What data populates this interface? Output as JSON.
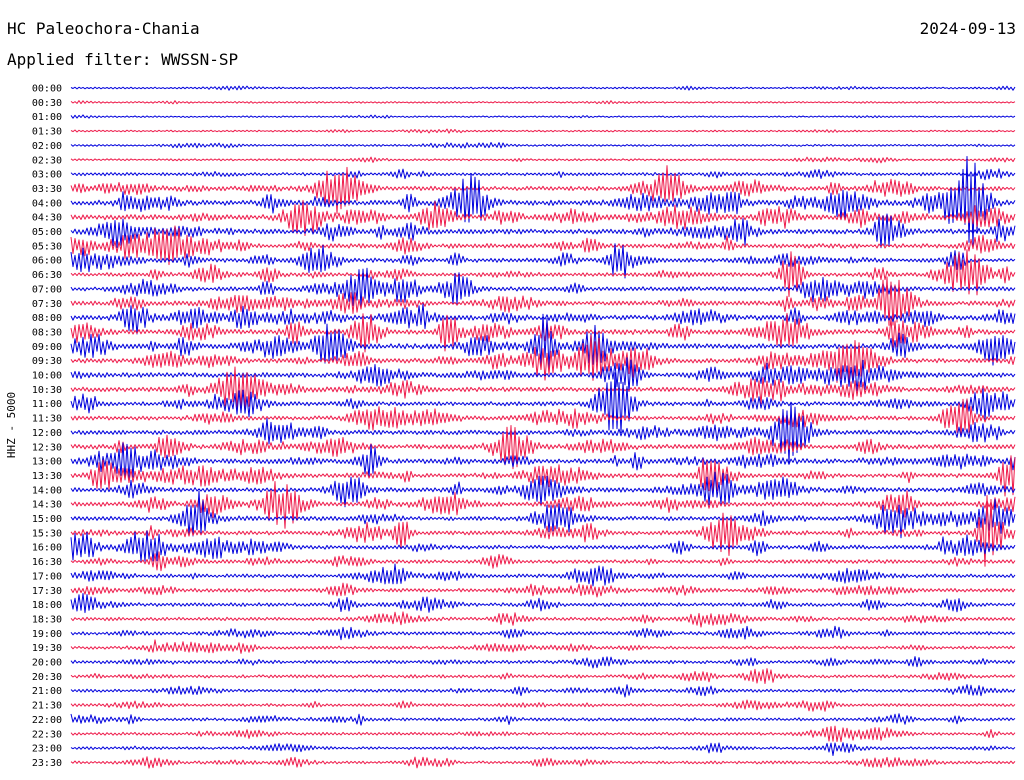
{
  "header": {
    "station": "HC Paleochora-Chania",
    "date": "2024-09-13",
    "filter": "Applied filter: WWSSN-SP"
  },
  "chart_data": {
    "type": "line",
    "title": "HC Paleochora-Chania",
    "subtitle": "Applied filter: WWSSN-SP",
    "date": "2024-09-13",
    "ylabel": "HHZ - 5000",
    "xlabel": "",
    "grid": false,
    "colors": [
      "#0000dd",
      "#ee1a4a"
    ],
    "rows": [
      {
        "label": "00:00",
        "level": 0.15
      },
      {
        "label": "00:30",
        "level": 0.12
      },
      {
        "label": "01:00",
        "level": 0.1
      },
      {
        "label": "01:30",
        "level": 0.12
      },
      {
        "label": "02:00",
        "level": 0.18
      },
      {
        "label": "02:30",
        "level": 0.18
      },
      {
        "label": "03:00",
        "level": 0.45
      },
      {
        "label": "03:30",
        "level": 0.7
      },
      {
        "label": "04:00",
        "level": 0.9
      },
      {
        "label": "04:30",
        "level": 0.9
      },
      {
        "label": "05:00",
        "level": 0.85
      },
      {
        "label": "05:30",
        "level": 0.75
      },
      {
        "label": "06:00",
        "level": 0.7
      },
      {
        "label": "06:30",
        "level": 0.65
      },
      {
        "label": "07:00",
        "level": 0.7
      },
      {
        "label": "07:30",
        "level": 0.75
      },
      {
        "label": "08:00",
        "level": 0.85
      },
      {
        "label": "08:30",
        "level": 0.9
      },
      {
        "label": "09:00",
        "level": 0.9
      },
      {
        "label": "09:30",
        "level": 0.8
      },
      {
        "label": "10:00",
        "level": 0.8
      },
      {
        "label": "10:30",
        "level": 0.75
      },
      {
        "label": "11:00",
        "level": 0.7
      },
      {
        "label": "11:30",
        "level": 0.7
      },
      {
        "label": "12:00",
        "level": 0.75
      },
      {
        "label": "12:30",
        "level": 0.8
      },
      {
        "label": "13:00",
        "level": 0.8
      },
      {
        "label": "13:30",
        "level": 0.7
      },
      {
        "label": "14:00",
        "level": 0.75
      },
      {
        "label": "14:30",
        "level": 0.75
      },
      {
        "label": "15:00",
        "level": 0.7
      },
      {
        "label": "15:30",
        "level": 0.7
      },
      {
        "label": "16:00",
        "level": 0.65
      },
      {
        "label": "16:30",
        "level": 0.6
      },
      {
        "label": "17:00",
        "level": 0.6
      },
      {
        "label": "17:30",
        "level": 0.55
      },
      {
        "label": "18:00",
        "level": 0.55
      },
      {
        "label": "18:30",
        "level": 0.5
      },
      {
        "label": "19:00",
        "level": 0.5
      },
      {
        "label": "19:30",
        "level": 0.45
      },
      {
        "label": "20:00",
        "level": 0.5
      },
      {
        "label": "20:30",
        "level": 0.45
      },
      {
        "label": "21:00",
        "level": 0.45
      },
      {
        "label": "21:30",
        "level": 0.4
      },
      {
        "label": "22:00",
        "level": 0.45
      },
      {
        "label": "22:30",
        "level": 0.4
      },
      {
        "label": "23:00",
        "level": 0.35
      },
      {
        "label": "23:30",
        "level": 0.4
      }
    ]
  }
}
